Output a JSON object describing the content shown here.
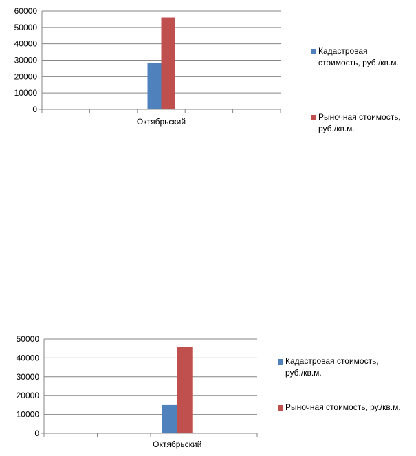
{
  "chart_data": [
    {
      "type": "bar",
      "categories": [
        "Октябрьский"
      ],
      "series": [
        {
          "name": "Кадастровая стоимость, руб./кв.м.",
          "values": [
            28500
          ],
          "color": "#4F81BD"
        },
        {
          "name": "Рыночная стоимость, руб./кв.м.",
          "values": [
            56000
          ],
          "color": "#C0504D"
        }
      ],
      "ylim": [
        0,
        60000
      ],
      "yticks": [
        "0",
        "10000",
        "20000",
        "30000",
        "40000",
        "50000",
        "60000"
      ],
      "grid": true,
      "legend": "right",
      "legend_lines": [
        [
          "Кадастровая",
          "стоимость, руб./кв.м."
        ],
        [
          "Рыночная стоимость,",
          "руб./кв.м."
        ]
      ]
    },
    {
      "type": "bar",
      "categories": [
        "Октябрьский"
      ],
      "series": [
        {
          "name": "Кадастровая стоимость, руб./кв.м.",
          "values": [
            15000
          ],
          "color": "#4F81BD"
        },
        {
          "name": "Рыночная стоимость, ру./кв.м.",
          "values": [
            45700
          ],
          "color": "#C0504D"
        }
      ],
      "ylim": [
        0,
        50000
      ],
      "yticks": [
        "0",
        "10000",
        "20000",
        "30000",
        "40000",
        "50000"
      ],
      "grid": true,
      "legend": "right",
      "legend_lines": [
        [
          "Кадастровая стоимость,",
          "руб./кв.м."
        ],
        [
          "Рыночная стоимость, ру./кв.м."
        ]
      ]
    }
  ]
}
